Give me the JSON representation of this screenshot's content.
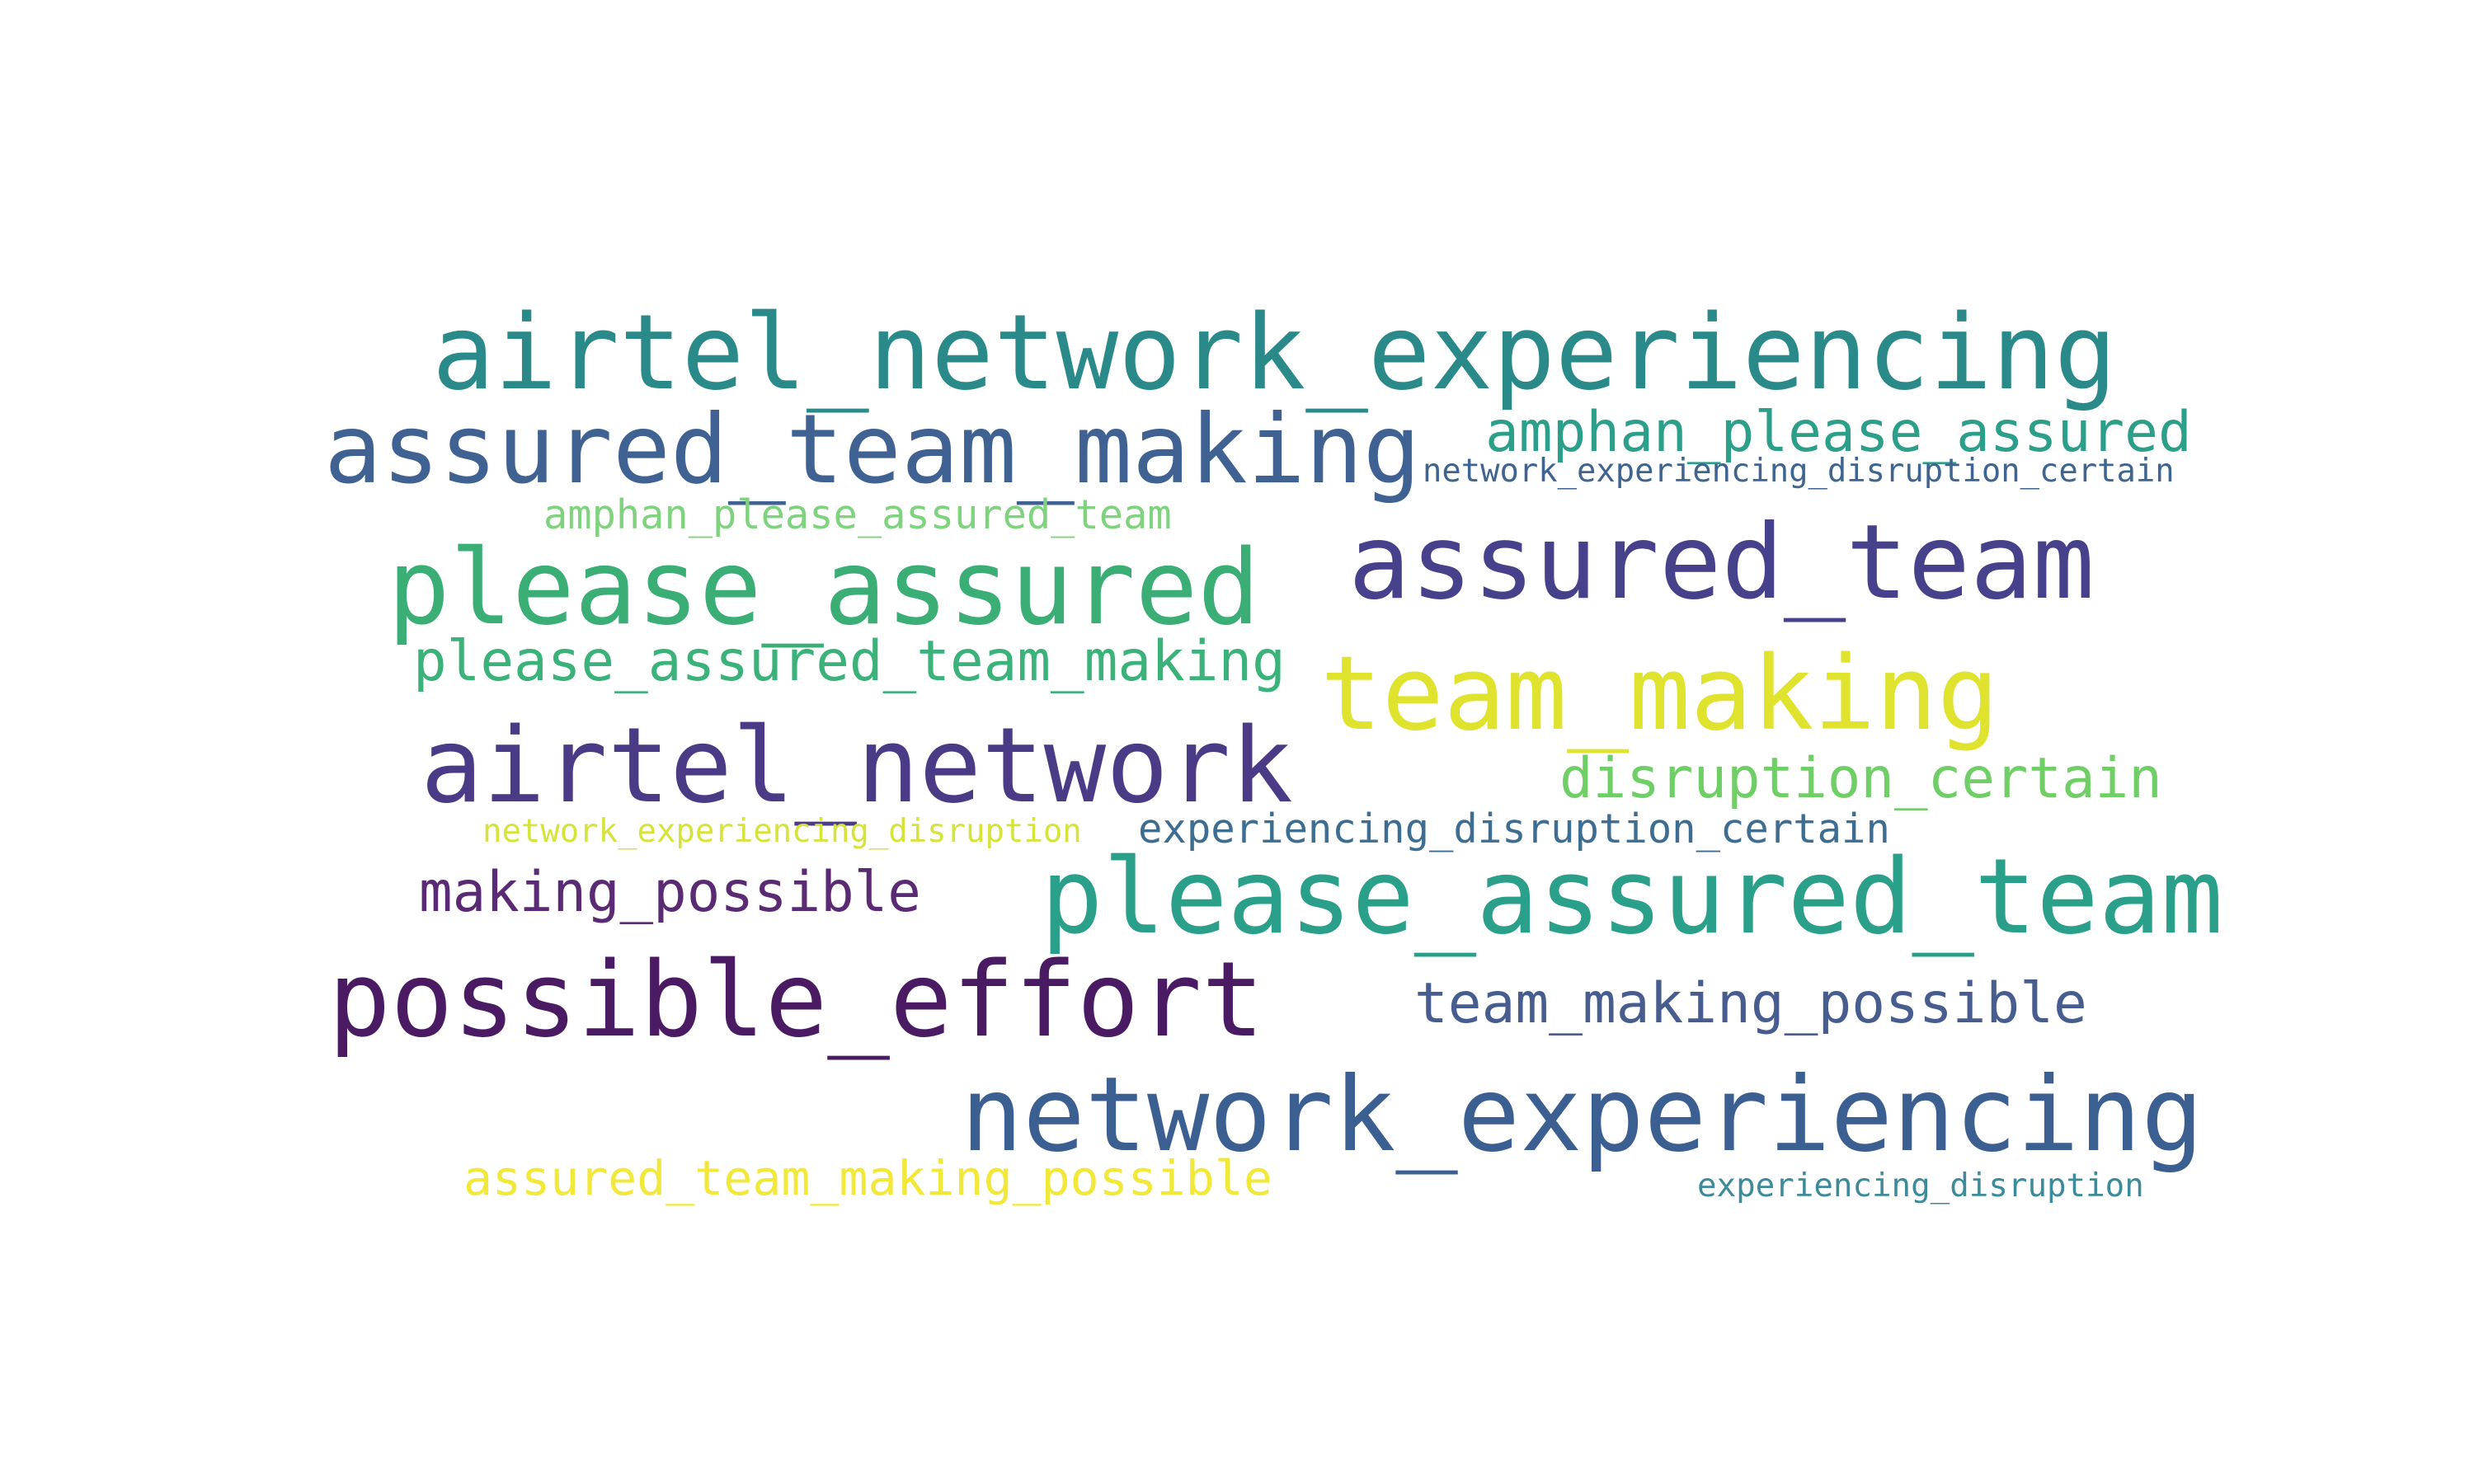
{
  "word_cloud": {
    "words": [
      {
        "text": "airtel_network_experiencing",
        "color": "#2a8a8a"
      },
      {
        "text": "assured_team_making",
        "color": "#3f6293"
      },
      {
        "text": "amphan_please_assured",
        "color": "#2c9f8a"
      },
      {
        "text": "network_experiencing_disruption_certain",
        "color": "#3e648f"
      },
      {
        "text": "amphan_please_assured_team",
        "color": "#7fd27e"
      },
      {
        "text": "assured_team",
        "color": "#46418a"
      },
      {
        "text": "please_assured",
        "color": "#3aae75"
      },
      {
        "text": "please_assured_team_making",
        "color": "#3bb27a"
      },
      {
        "text": "team_making",
        "color": "#dfe32e"
      },
      {
        "text": "airtel_network",
        "color": "#4b3b86"
      },
      {
        "text": "disruption_certain",
        "color": "#6fcf66"
      },
      {
        "text": "network_experiencing_disruption",
        "color": "#d6e33a"
      },
      {
        "text": "experiencing_disruption_certain",
        "color": "#3d6e92"
      },
      {
        "text": "making_possible",
        "color": "#5a2a74"
      },
      {
        "text": "please_assured_team",
        "color": "#2aa08a"
      },
      {
        "text": "possible_effort",
        "color": "#4a1a63"
      },
      {
        "text": "team_making_possible",
        "color": "#475c8f"
      },
      {
        "text": "network_experiencing",
        "color": "#3c5f91"
      },
      {
        "text": "assured_team_making_possible",
        "color": "#f2e83a"
      },
      {
        "text": "experiencing_disruption",
        "color": "#3d8a9a"
      }
    ]
  }
}
